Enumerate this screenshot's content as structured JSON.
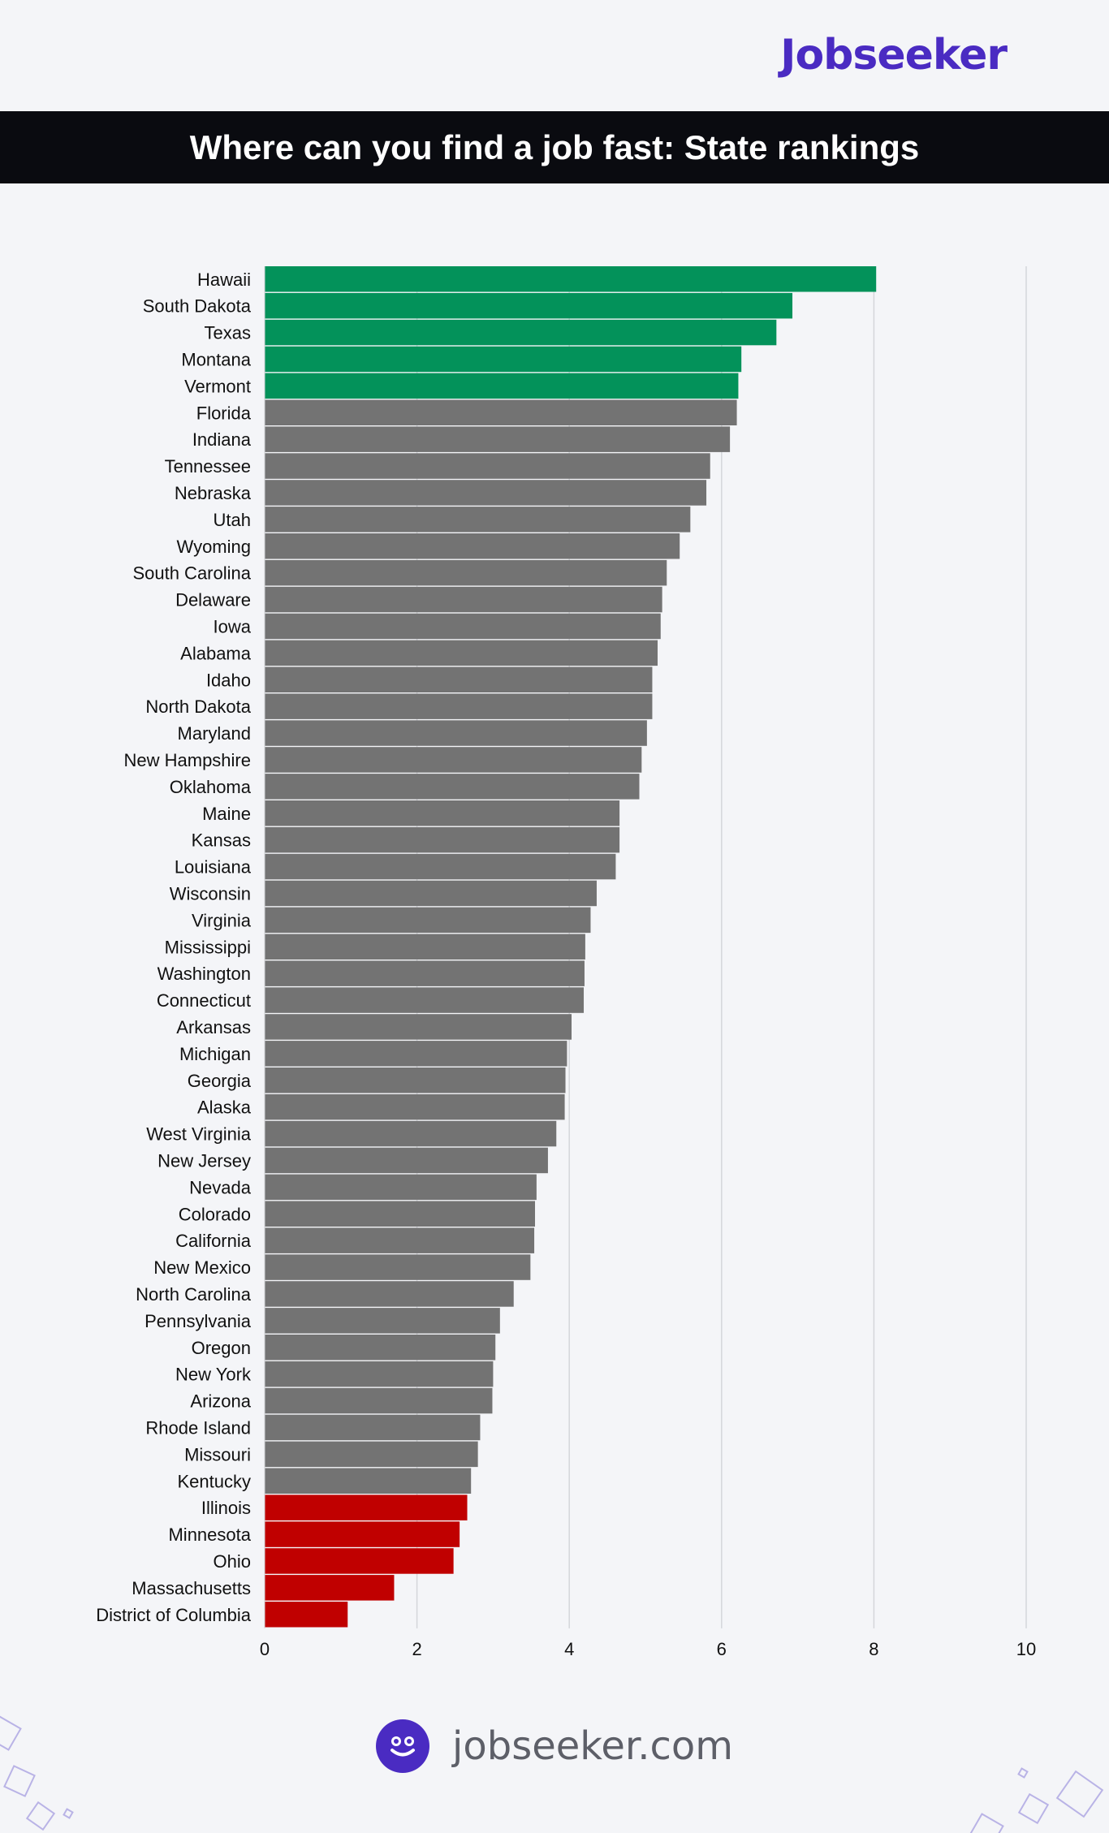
{
  "brand": {
    "logo_text": "Jobseeker",
    "color": "#4a2bc2"
  },
  "header": {
    "title": "Where can you find a job fast: State rankings"
  },
  "footer": {
    "url_text": "jobseeker.com",
    "icon": "smiley-face-icon"
  },
  "colors": {
    "top": "#03925a",
    "middle": "#737373",
    "bottom": "#c00000",
    "grid": "#d4d6da"
  },
  "chart_data": {
    "type": "bar",
    "orientation": "horizontal",
    "title": "Where can you find a job fast: State rankings",
    "xlabel": "",
    "ylabel": "",
    "xlim": [
      0,
      10
    ],
    "xticks": [
      0,
      2,
      4,
      6,
      8,
      10
    ],
    "grid": true,
    "categories": [
      "Hawaii",
      "South Dakota",
      "Texas",
      "Montana",
      "Vermont",
      "Florida",
      "Indiana",
      "Tennessee",
      "Nebraska",
      "Utah",
      "Wyoming",
      "South Carolina",
      "Delaware",
      "Iowa",
      "Alabama",
      "Idaho",
      "North Dakota",
      "Maryland",
      "New Hampshire",
      "Oklahoma",
      "Maine",
      "Kansas",
      "Louisiana",
      "Wisconsin",
      "Virginia",
      "Mississippi",
      "Washington",
      "Connecticut",
      "Arkansas",
      "Michigan",
      "Georgia",
      "Alaska",
      "West Virginia",
      "New Jersey",
      "Nevada",
      "Colorado",
      "California",
      "New Mexico",
      "North Carolina",
      "Pennsylvania",
      "Oregon",
      "New York",
      "Arizona",
      "Rhode Island",
      "Missouri",
      "Kentucky",
      "Illinois",
      "Minnesota",
      "Ohio",
      "Massachusetts",
      "District of Columbia"
    ],
    "values": [
      8.03,
      6.93,
      6.72,
      6.26,
      6.22,
      6.2,
      6.11,
      5.85,
      5.8,
      5.59,
      5.45,
      5.28,
      5.22,
      5.2,
      5.16,
      5.09,
      5.09,
      5.02,
      4.95,
      4.92,
      4.66,
      4.66,
      4.61,
      4.36,
      4.28,
      4.21,
      4.2,
      4.19,
      4.03,
      3.97,
      3.95,
      3.94,
      3.83,
      3.72,
      3.57,
      3.55,
      3.54,
      3.49,
      3.27,
      3.09,
      3.03,
      3.0,
      2.99,
      2.83,
      2.8,
      2.71,
      2.66,
      2.56,
      2.48,
      1.7,
      1.09
    ],
    "highlight": {
      "top_count": 5,
      "bottom_count": 5
    }
  }
}
